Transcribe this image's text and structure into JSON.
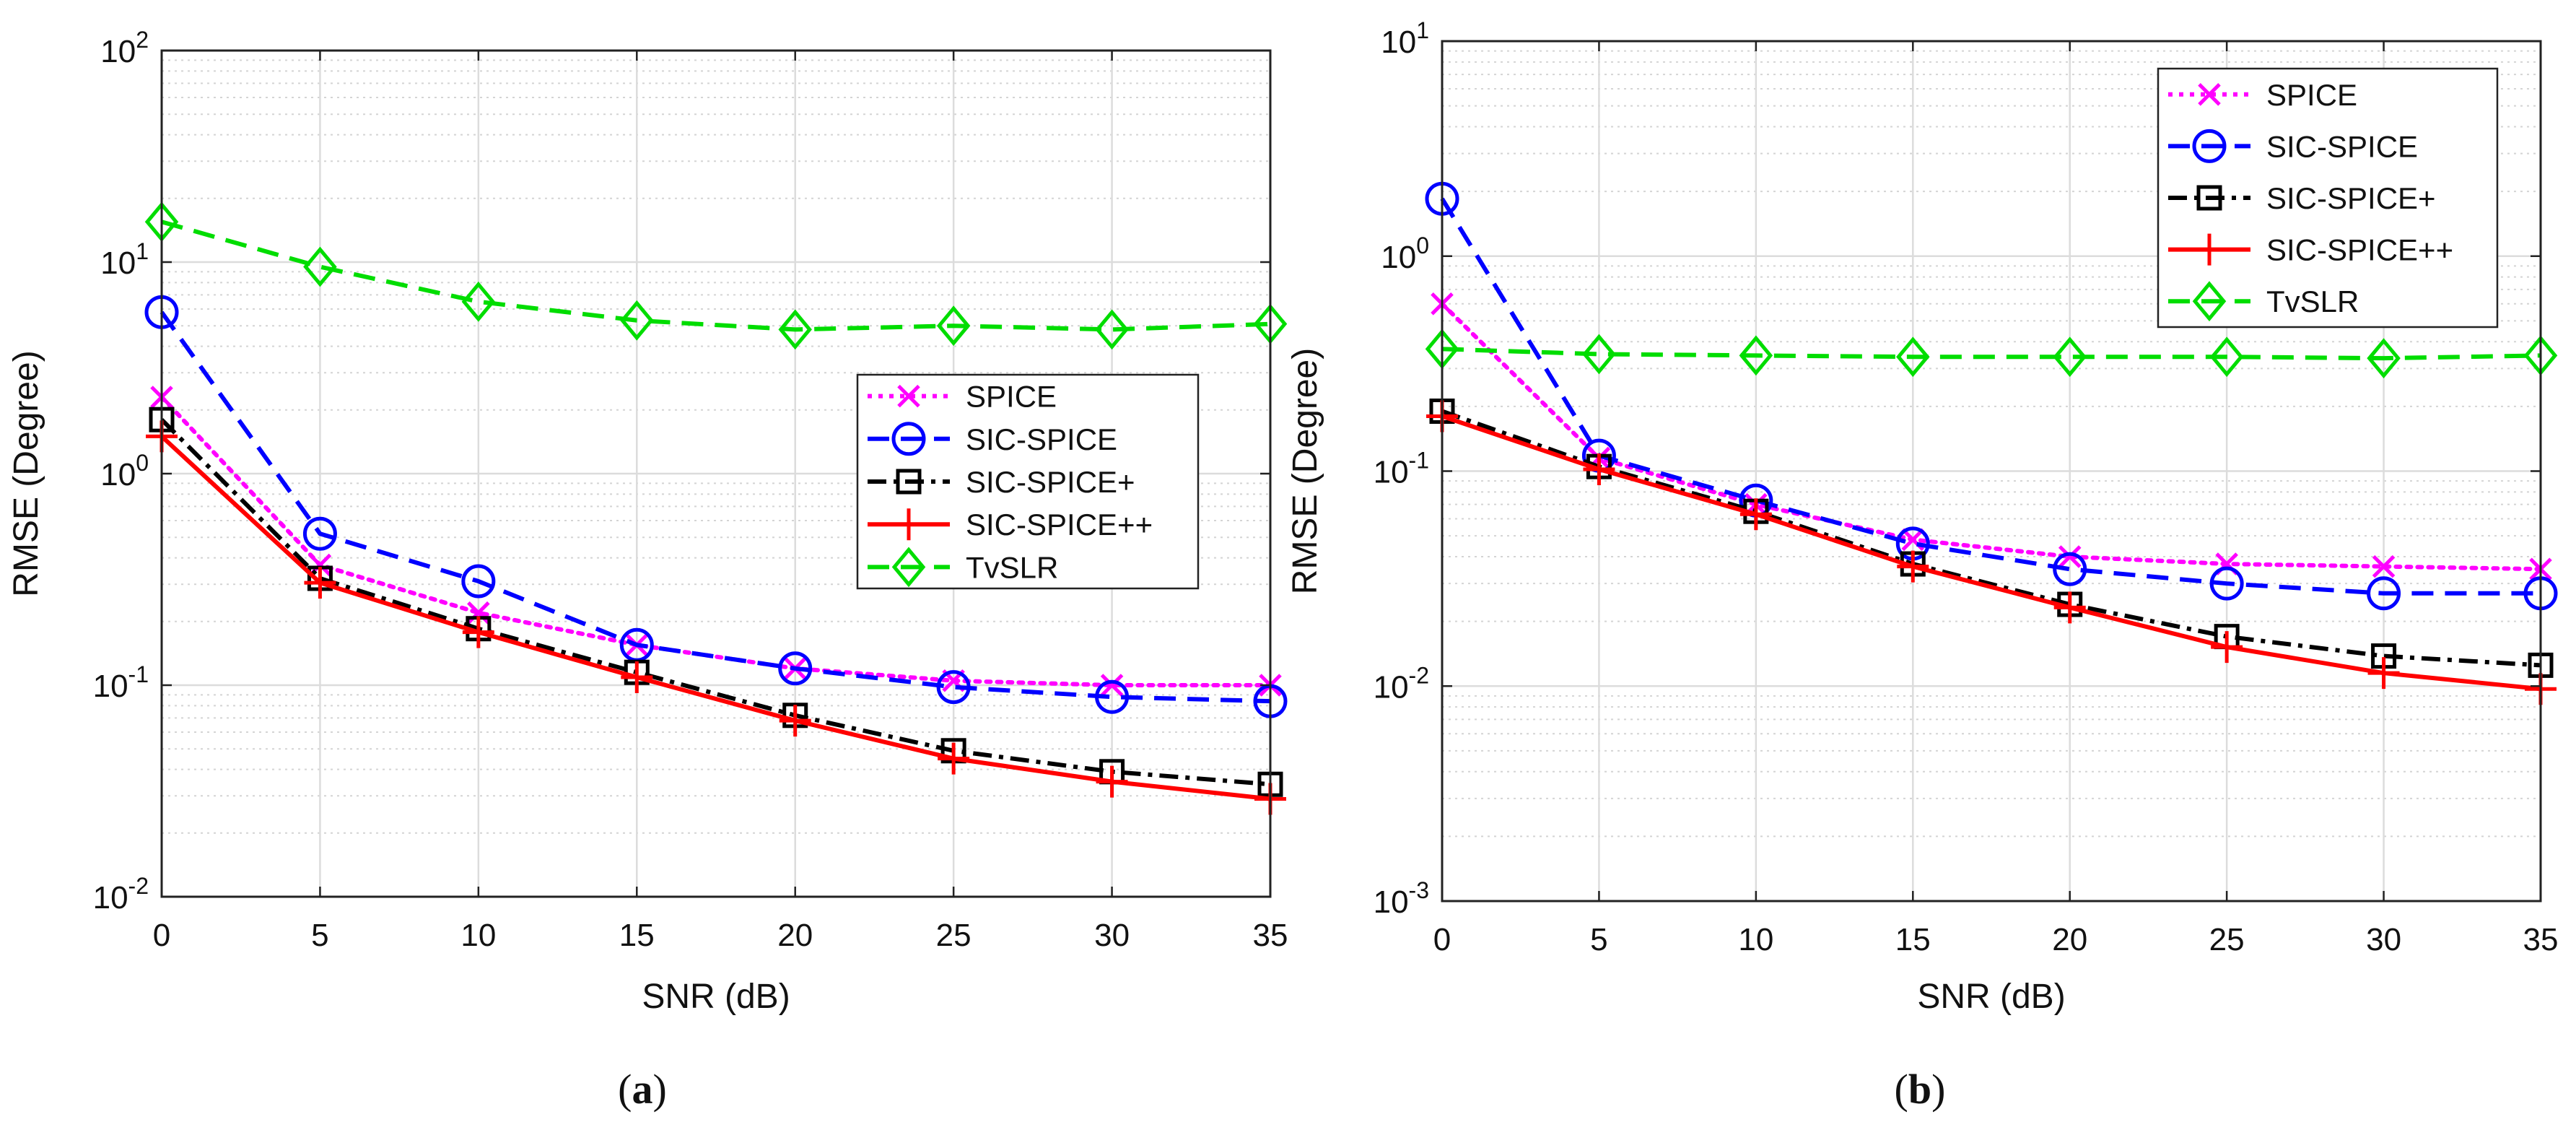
{
  "chart_data": [
    {
      "type": "line",
      "caption": "a",
      "xlabel": "SNR (dB)",
      "ylabel": "RMSE (Degree)",
      "x": [
        0,
        5,
        10,
        15,
        20,
        25,
        30,
        35
      ],
      "xticks": [
        "0",
        "5",
        "10",
        "15",
        "20",
        "25",
        "30",
        "35"
      ],
      "xlim": [
        0,
        35
      ],
      "yscale": "log",
      "ylim": [
        0.01,
        100
      ],
      "yticks": [
        {
          "base": "10",
          "exp": "-2"
        },
        {
          "base": "10",
          "exp": "-1"
        },
        {
          "base": "10",
          "exp": "0"
        },
        {
          "base": "10",
          "exp": "1"
        },
        {
          "base": "10",
          "exp": "2"
        }
      ],
      "grid": true,
      "legend_position": "center-right",
      "series": [
        {
          "name": "SPICE",
          "color": "#ff00ff",
          "dash": "dotted",
          "marker": "x",
          "values": [
            2.3,
            0.37,
            0.22,
            0.155,
            0.12,
            0.105,
            0.1,
            0.1
          ]
        },
        {
          "name": "SIC-SPICE",
          "color": "#0000ff",
          "dash": "dashed",
          "marker": "circle",
          "values": [
            5.8,
            0.52,
            0.31,
            0.155,
            0.12,
            0.098,
            0.088,
            0.084
          ]
        },
        {
          "name": "SIC-SPICE+",
          "color": "#000000",
          "dash": "dashdot",
          "marker": "square",
          "values": [
            1.8,
            0.32,
            0.185,
            0.115,
            0.072,
            0.049,
            0.039,
            0.034
          ]
        },
        {
          "name": "SIC-SPICE++",
          "color": "#ff0000",
          "dash": "solid",
          "marker": "plus",
          "values": [
            1.5,
            0.305,
            0.178,
            0.109,
            0.068,
            0.045,
            0.035,
            0.029
          ]
        },
        {
          "name": "TvSLR",
          "color": "#00dd00",
          "dash": "dashed",
          "marker": "diamond",
          "values": [
            15.5,
            9.5,
            6.5,
            5.3,
            4.8,
            5.0,
            4.8,
            5.1
          ]
        }
      ]
    },
    {
      "type": "line",
      "caption": "b",
      "xlabel": "SNR (dB)",
      "ylabel": "RMSE (Degree)",
      "x": [
        0,
        5,
        10,
        15,
        20,
        25,
        30,
        35
      ],
      "xticks": [
        "0",
        "5",
        "10",
        "15",
        "20",
        "25",
        "30",
        "35"
      ],
      "xlim": [
        0,
        35
      ],
      "yscale": "log",
      "ylim": [
        0.001,
        10
      ],
      "yticks": [
        {
          "base": "10",
          "exp": "-3"
        },
        {
          "base": "10",
          "exp": "-2"
        },
        {
          "base": "10",
          "exp": "-1"
        },
        {
          "base": "10",
          "exp": "0"
        },
        {
          "base": "10",
          "exp": "1"
        }
      ],
      "grid": true,
      "legend_position": "top-right",
      "series": [
        {
          "name": "SPICE",
          "color": "#ff00ff",
          "dash": "dotted",
          "marker": "x",
          "values": [
            0.6,
            0.115,
            0.07,
            0.048,
            0.04,
            0.037,
            0.036,
            0.035
          ]
        },
        {
          "name": "SIC-SPICE",
          "color": "#0000ff",
          "dash": "dashed",
          "marker": "circle",
          "values": [
            1.85,
            0.118,
            0.073,
            0.046,
            0.035,
            0.03,
            0.027,
            0.027
          ]
        },
        {
          "name": "SIC-SPICE+",
          "color": "#000000",
          "dash": "dashdot",
          "marker": "square",
          "values": [
            0.19,
            0.105,
            0.065,
            0.037,
            0.024,
            0.017,
            0.0138,
            0.0125
          ]
        },
        {
          "name": "SIC-SPICE++",
          "color": "#ff0000",
          "dash": "solid",
          "marker": "plus",
          "values": [
            0.18,
            0.102,
            0.063,
            0.036,
            0.0232,
            0.0152,
            0.0115,
            0.0097
          ]
        },
        {
          "name": "TvSLR",
          "color": "#00dd00",
          "dash": "dashed",
          "marker": "diamond",
          "values": [
            0.37,
            0.35,
            0.345,
            0.34,
            0.34,
            0.34,
            0.335,
            0.345
          ]
        }
      ]
    }
  ]
}
